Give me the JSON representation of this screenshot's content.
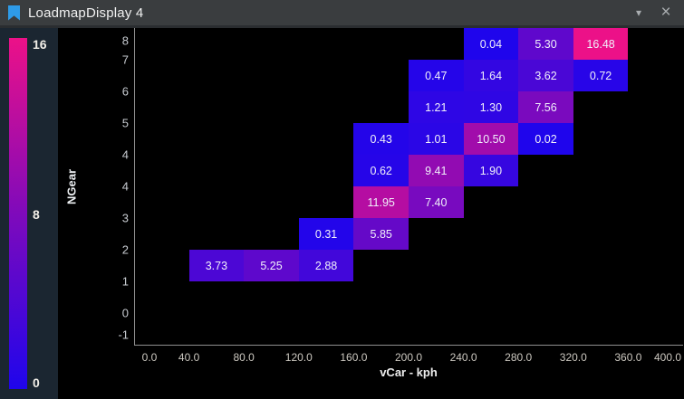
{
  "titlebar": {
    "title": "LoadmapDisplay 4",
    "bookmark_color": "#2e9be8",
    "dropdown_glyph": "▾",
    "close_glyph": "×"
  },
  "colorbar": {
    "max_label": "16",
    "mid_label": "8",
    "min_label": "0"
  },
  "chart_data": {
    "type": "heatmap",
    "xlabel": "vCar - kph",
    "ylabel": "NGear",
    "x_ticks": [
      "0.0",
      "40.0",
      "80.0",
      "120.0",
      "160.0",
      "200.0",
      "240.0",
      "280.0",
      "320.0",
      "360.0",
      "400.0"
    ],
    "y_ticks": [
      "8",
      "7",
      "6",
      "5",
      "4",
      "4",
      "3",
      "2",
      "1",
      "0",
      "-1"
    ],
    "x_range": [
      0,
      400
    ],
    "value_range": [
      0,
      16
    ],
    "grid": false,
    "colormap_stops": [
      {
        "value": 0,
        "color": "#1f05ec"
      },
      {
        "value": 8,
        "color": "#7f0abb"
      },
      {
        "value": 16,
        "color": "#ec1188"
      }
    ],
    "cells": [
      {
        "row": 0,
        "kph": 240,
        "value": 0.04,
        "label": "0.04"
      },
      {
        "row": 0,
        "kph": 280,
        "value": 5.3,
        "label": "5.30"
      },
      {
        "row": 0,
        "kph": 320,
        "value": 16.48,
        "label": "16.48"
      },
      {
        "row": 1,
        "kph": 200,
        "value": 0.47,
        "label": "0.47"
      },
      {
        "row": 1,
        "kph": 240,
        "value": 1.64,
        "label": "1.64"
      },
      {
        "row": 1,
        "kph": 280,
        "value": 3.62,
        "label": "3.62"
      },
      {
        "row": 1,
        "kph": 320,
        "value": 0.72,
        "label": "0.72"
      },
      {
        "row": 2,
        "kph": 200,
        "value": 1.21,
        "label": "1.21"
      },
      {
        "row": 2,
        "kph": 240,
        "value": 1.3,
        "label": "1.30"
      },
      {
        "row": 2,
        "kph": 280,
        "value": 7.56,
        "label": "7.56"
      },
      {
        "row": 3,
        "kph": 160,
        "value": 0.43,
        "label": "0.43"
      },
      {
        "row": 3,
        "kph": 200,
        "value": 1.01,
        "label": "1.01"
      },
      {
        "row": 3,
        "kph": 240,
        "value": 10.5,
        "label": "10.50"
      },
      {
        "row": 3,
        "kph": 280,
        "value": 0.02,
        "label": "0.02"
      },
      {
        "row": 4,
        "kph": 160,
        "value": 0.62,
        "label": "0.62"
      },
      {
        "row": 4,
        "kph": 200,
        "value": 9.41,
        "label": "9.41"
      },
      {
        "row": 4,
        "kph": 240,
        "value": 1.9,
        "label": "1.90"
      },
      {
        "row": 5,
        "kph": 160,
        "value": 11.95,
        "label": "11.95"
      },
      {
        "row": 5,
        "kph": 200,
        "value": 7.4,
        "label": "7.40"
      },
      {
        "row": 6,
        "kph": 120,
        "value": 0.31,
        "label": "0.31"
      },
      {
        "row": 6,
        "kph": 160,
        "value": 5.85,
        "label": "5.85"
      },
      {
        "row": 7,
        "kph": 40,
        "value": 3.73,
        "label": "3.73"
      },
      {
        "row": 7,
        "kph": 80,
        "value": 5.25,
        "label": "5.25"
      },
      {
        "row": 7,
        "kph": 120,
        "value": 2.88,
        "label": "2.88"
      }
    ]
  }
}
